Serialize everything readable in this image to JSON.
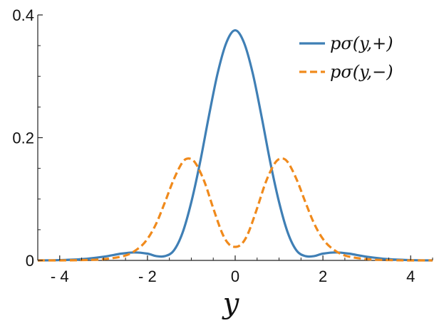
{
  "chart_data": {
    "type": "line",
    "title": "",
    "xlabel": "y",
    "ylabel": "",
    "xlim": [
      -4.5,
      4.5
    ],
    "ylim": [
      0,
      0.4
    ],
    "x_ticks": [
      -4,
      -2,
      0,
      2,
      4
    ],
    "x_tick_labels": [
      "- 4",
      "- 2",
      "0",
      "2",
      "4"
    ],
    "y_ticks": [
      0,
      0.2,
      0.4
    ],
    "y_tick_labels": [
      "0",
      "0.2",
      "0.4"
    ],
    "grid": false,
    "legend_position": "top-right",
    "series": [
      {
        "name": "pσ(y,+)",
        "color": "#3f7fb5",
        "dash": "solid",
        "x": [
          -4.5,
          -4,
          -3.5,
          -3,
          -2.6,
          -2.3,
          -2,
          -1.8,
          -1.6,
          -1.4,
          -1.2,
          -1,
          -0.8,
          -0.6,
          -0.4,
          -0.2,
          0,
          0.2,
          0.4,
          0.6,
          0.8,
          1,
          1.2,
          1.4,
          1.6,
          1.8,
          2,
          2.3,
          2.6,
          3,
          3.5,
          4,
          4.5
        ],
        "y": [
          0,
          0.0005,
          0.002,
          0.006,
          0.011,
          0.013,
          0.011,
          0.007,
          0.007,
          0.016,
          0.045,
          0.095,
          0.16,
          0.235,
          0.305,
          0.355,
          0.375,
          0.355,
          0.305,
          0.235,
          0.16,
          0.095,
          0.045,
          0.016,
          0.007,
          0.007,
          0.011,
          0.013,
          0.011,
          0.006,
          0.002,
          0.0005,
          0
        ]
      },
      {
        "name": "pσ(y,−)",
        "color": "#f08a1c",
        "dash": "dashed",
        "x": [
          -4.5,
          -4,
          -3.5,
          -3,
          -2.5,
          -2.2,
          -2,
          -1.8,
          -1.6,
          -1.4,
          -1.2,
          -1.05,
          -0.9,
          -0.7,
          -0.5,
          -0.3,
          -0.15,
          0,
          0.15,
          0.3,
          0.5,
          0.7,
          0.9,
          1.05,
          1.2,
          1.4,
          1.6,
          1.8,
          2,
          2.2,
          2.5,
          3,
          3.5,
          4,
          4.5
        ],
        "y": [
          0,
          0,
          0.0005,
          0.002,
          0.008,
          0.02,
          0.035,
          0.06,
          0.095,
          0.132,
          0.16,
          0.166,
          0.158,
          0.128,
          0.085,
          0.045,
          0.027,
          0.022,
          0.027,
          0.045,
          0.085,
          0.128,
          0.158,
          0.166,
          0.16,
          0.132,
          0.095,
          0.06,
          0.035,
          0.02,
          0.008,
          0.002,
          0.0005,
          0,
          0
        ]
      }
    ]
  }
}
